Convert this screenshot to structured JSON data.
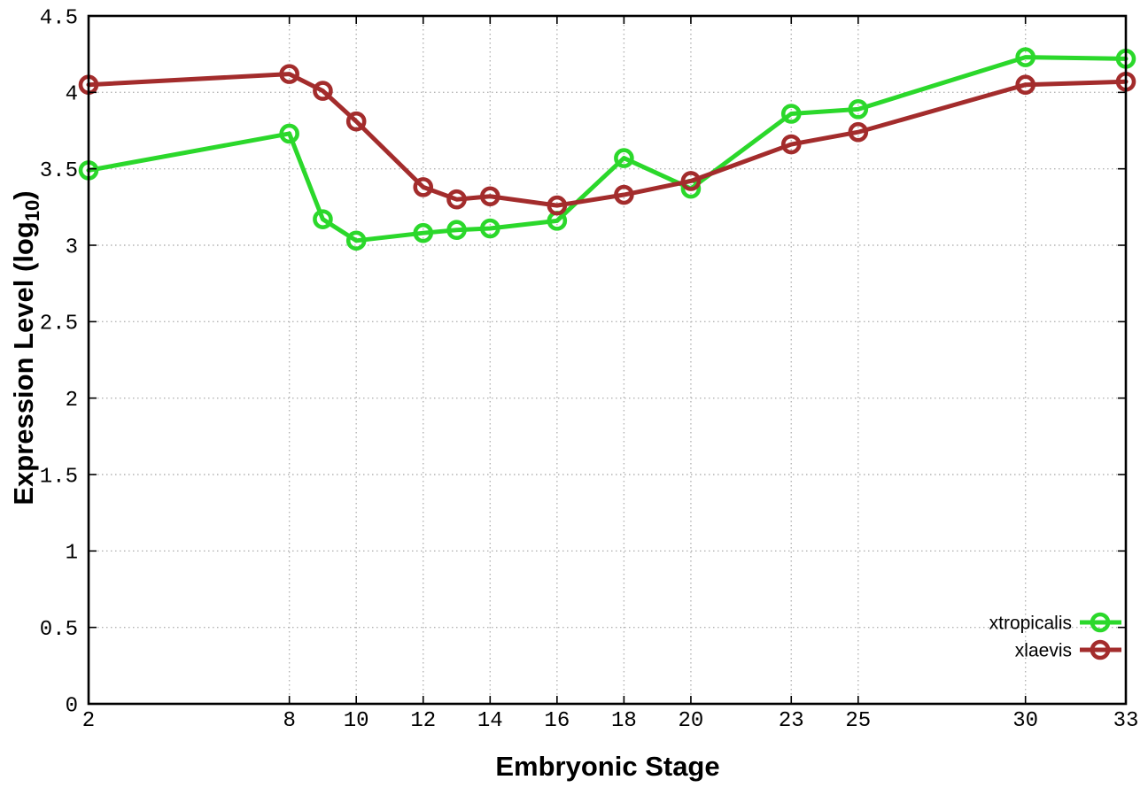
{
  "chart_data": {
    "type": "line",
    "x": [
      2,
      8,
      9,
      10,
      12,
      13,
      14,
      16,
      18,
      20,
      23,
      25,
      30,
      33
    ],
    "series": [
      {
        "name": "xtropicalis",
        "color": "#2bd82b",
        "marker": "open-circle",
        "values": [
          3.49,
          3.73,
          3.17,
          3.03,
          3.08,
          3.1,
          3.11,
          3.16,
          3.57,
          3.37,
          3.86,
          3.89,
          4.23,
          4.22
        ]
      },
      {
        "name": "xlaevis",
        "color": "#a32c2c",
        "marker": "open-circle",
        "values": [
          4.05,
          4.12,
          4.01,
          3.81,
          3.38,
          3.3,
          3.32,
          3.26,
          3.33,
          3.42,
          3.66,
          3.74,
          4.05,
          4.07
        ]
      }
    ],
    "title": "",
    "xlabel": "Embryonic Stage",
    "ylabel": "Expression Level (log10)",
    "ylabel_parts": {
      "main": "Expression Level (log",
      "sub": "10",
      "close": ")"
    },
    "xlim": [
      2,
      33
    ],
    "ylim": [
      0,
      4.5
    ],
    "xticks": [
      2,
      8,
      10,
      12,
      14,
      16,
      18,
      20,
      23,
      25,
      30,
      33
    ],
    "xtick_labels": [
      "2",
      "8",
      "10",
      "12",
      "14",
      "16",
      "18",
      "20",
      "23",
      "25",
      "30",
      "33"
    ],
    "yticks": [
      0,
      0.5,
      1,
      1.5,
      2,
      2.5,
      3,
      3.5,
      4,
      4.5
    ],
    "ytick_labels": [
      "0",
      "0.5",
      "1",
      "1.5",
      "2",
      "2.5",
      "3",
      "3.5",
      "4",
      "4.5"
    ],
    "grid": true,
    "legend_position": "bottom-right",
    "grid_color": "#b4b4b4",
    "border_color": "#000000"
  }
}
